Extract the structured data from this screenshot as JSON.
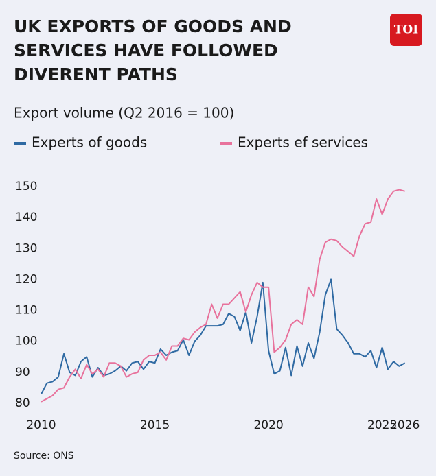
{
  "chart_data": {
    "type": "line",
    "title": [
      "UK EXPORTS OF GOODS AND",
      "SERVICES HAVE FOLLOWED",
      "DIVERENT PATHS"
    ],
    "logo": "TOI",
    "subtitle": "Export volume (Q2 2016 = 100)",
    "source": "Source: ONS",
    "x": [
      2010,
      2010.25,
      2010.5,
      2010.75,
      2011,
      2011.25,
      2011.5,
      2011.75,
      2012,
      2012.25,
      2012.5,
      2012.75,
      2013,
      2013.25,
      2013.5,
      2013.75,
      2014,
      2014.25,
      2014.5,
      2014.75,
      2015,
      2015.25,
      2015.5,
      2015.75,
      2016,
      2016.25,
      2016.5,
      2016.75,
      2017,
      2017.25,
      2017.5,
      2017.75,
      2018,
      2018.25,
      2018.5,
      2018.75,
      2019,
      2019.25,
      2019.5,
      2019.75,
      2020,
      2020.25,
      2020.5,
      2020.75,
      2021,
      2021.25,
      2021.5,
      2021.75,
      2022,
      2022.25,
      2022.5,
      2022.75,
      2023,
      2023.25,
      2023.5,
      2023.75,
      2024,
      2024.25,
      2024.5,
      2024.75,
      2025,
      2025.25,
      2025.5,
      2025.75,
      2026
    ],
    "series": [
      {
        "name": "Experts of goods",
        "color": "#2f6aa3",
        "values": [
          83,
          86.5,
          87,
          88.5,
          96,
          90,
          89,
          93.5,
          95,
          88.5,
          91.5,
          89,
          89.5,
          90.5,
          92,
          90.5,
          93,
          93.5,
          91,
          93.5,
          93,
          97.5,
          95.5,
          96.5,
          97,
          100.5,
          95.5,
          100,
          102,
          105,
          105,
          105,
          105.5,
          109,
          108,
          103.5,
          109.5,
          99.5,
          108,
          119,
          97,
          89.5,
          90.5,
          98,
          89,
          98.5,
          92,
          99.5,
          94.5,
          103,
          115,
          120,
          104,
          102,
          99.5,
          96,
          96,
          95,
          97,
          91.5,
          98,
          91,
          93.5,
          92,
          93
        ]
      },
      {
        "name": "Experts ef services",
        "color": "#e8729c",
        "values": [
          80.5,
          81.5,
          82.5,
          84.5,
          85,
          88.5,
          91,
          88,
          92.5,
          89.5,
          91,
          88.5,
          93,
          93,
          92,
          88.5,
          89.5,
          90,
          94,
          95.5,
          95.5,
          96.5,
          94,
          98.5,
          98.5,
          101,
          100.5,
          103,
          104.5,
          105.5,
          112,
          107.5,
          112,
          112,
          114,
          116,
          109.5,
          115,
          119,
          117.5,
          117.5,
          96.5,
          98,
          100.5,
          105.5,
          107,
          105.5,
          117.5,
          114.5,
          126.5,
          132,
          133,
          132.5,
          130.5,
          129,
          127.5,
          134,
          138,
          138.5,
          146,
          141,
          146,
          148.5,
          149,
          148.5
        ]
      }
    ],
    "xlim": [
      2010,
      2026.25
    ],
    "xticks": [
      2010,
      2015,
      2020,
      2025,
      2026
    ],
    "ylim": [
      80,
      150
    ],
    "yticks": [
      80,
      90,
      100,
      110,
      120,
      130,
      140,
      150
    ],
    "grid": false
  }
}
